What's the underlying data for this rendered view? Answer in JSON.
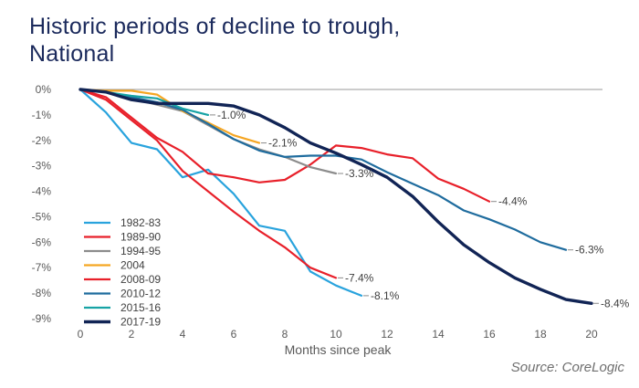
{
  "title_lines": [
    "Historic periods of decline to trough,",
    "National"
  ],
  "source": "Source: CoreLogic",
  "chart_data": {
    "type": "line",
    "xlabel": "Months since peak",
    "ylabel": "",
    "xlim": [
      0,
      20
    ],
    "ylim": [
      -9,
      0
    ],
    "x_ticks": [
      0,
      2,
      4,
      6,
      8,
      10,
      12,
      14,
      16,
      18,
      20
    ],
    "y_ticks": [
      0,
      -1,
      -2,
      -3,
      -4,
      -5,
      -6,
      -7,
      -8,
      -9
    ],
    "y_tick_labels": [
      "0%",
      "-1%",
      "-2%",
      "-3%",
      "-4%",
      "-5%",
      "-6%",
      "-7%",
      "-8%",
      "-9%"
    ],
    "grid": false,
    "legend_position": "bottom-left",
    "series": [
      {
        "name": "1982-83",
        "color": "#29a3dd",
        "stroke": 2.2,
        "x": [
          0,
          1,
          2,
          3,
          4,
          5,
          6,
          7,
          8,
          9,
          10,
          11
        ],
        "y": [
          0,
          -0.9,
          -2.1,
          -2.35,
          -3.45,
          -3.15,
          -4.1,
          -5.35,
          -5.55,
          -7.15,
          -7.7,
          -8.1
        ],
        "end_label": "-8.1%"
      },
      {
        "name": "1989-90",
        "color": "#e8202a",
        "stroke": 2.2,
        "x": [
          0,
          1,
          2,
          3,
          4,
          5,
          6,
          7,
          8,
          9,
          10,
          11,
          12,
          13,
          14,
          15,
          16
        ],
        "y": [
          0,
          -0.3,
          -1.1,
          -1.9,
          -2.45,
          -3.3,
          -3.45,
          -3.65,
          -3.55,
          -2.95,
          -2.2,
          -2.3,
          -2.55,
          -2.7,
          -3.5,
          -3.9,
          -4.4
        ],
        "end_label": "-4.4%"
      },
      {
        "name": "1994-95",
        "color": "#8c8c8c",
        "stroke": 2.2,
        "x": [
          0,
          1,
          2,
          3,
          4,
          5,
          6,
          7,
          8,
          9,
          10
        ],
        "y": [
          0,
          -0.1,
          -0.35,
          -0.6,
          -0.85,
          -1.4,
          -1.95,
          -2.35,
          -2.65,
          -3.05,
          -3.3
        ],
        "end_label": "-3.3%"
      },
      {
        "name": "2004",
        "color": "#f5a623",
        "stroke": 2.2,
        "x": [
          0,
          1,
          2,
          3,
          4,
          5,
          6,
          7
        ],
        "y": [
          0,
          -0.05,
          -0.05,
          -0.2,
          -0.85,
          -1.3,
          -1.8,
          -2.1
        ],
        "end_label": "-2.1%"
      },
      {
        "name": "2008-09",
        "color": "#e8202a",
        "stroke": 2.2,
        "x": [
          0,
          1,
          2,
          3,
          4,
          5,
          6,
          7,
          8,
          9,
          10
        ],
        "y": [
          0,
          -0.4,
          -1.2,
          -2.0,
          -3.2,
          -4.0,
          -4.8,
          -5.55,
          -6.2,
          -7.0,
          -7.4
        ],
        "end_label": "-7.4%"
      },
      {
        "name": "2010-12",
        "color": "#1f6c9e",
        "stroke": 2.2,
        "x": [
          0,
          1,
          2,
          3,
          4,
          5,
          6,
          7,
          8,
          9,
          10,
          11,
          12,
          13,
          14,
          15,
          16,
          17,
          18,
          19
        ],
        "y": [
          0,
          -0.1,
          -0.3,
          -0.5,
          -0.8,
          -1.35,
          -1.95,
          -2.4,
          -2.65,
          -2.6,
          -2.6,
          -2.75,
          -3.25,
          -3.7,
          -4.15,
          -4.75,
          -5.1,
          -5.5,
          -6.0,
          -6.3
        ],
        "end_label": "-6.3%"
      },
      {
        "name": "2015-16",
        "color": "#17a3a5",
        "stroke": 2.2,
        "x": [
          0,
          1,
          2,
          3,
          4,
          5
        ],
        "y": [
          0,
          -0.1,
          -0.25,
          -0.35,
          -0.75,
          -1.0
        ],
        "end_label": "-1.0%"
      },
      {
        "name": "2017-19",
        "color": "#112455",
        "stroke": 3.4,
        "x": [
          0,
          1,
          2,
          3,
          4,
          5,
          6,
          7,
          8,
          9,
          10,
          11,
          12,
          13,
          14,
          15,
          16,
          17,
          18,
          19,
          20
        ],
        "y": [
          0,
          -0.1,
          -0.4,
          -0.55,
          -0.55,
          -0.55,
          -0.65,
          -1.0,
          -1.5,
          -2.1,
          -2.5,
          -2.95,
          -3.45,
          -4.2,
          -5.2,
          -6.1,
          -6.8,
          -7.4,
          -7.85,
          -8.25,
          -8.4
        ],
        "end_label": "-8.4%"
      }
    ]
  }
}
